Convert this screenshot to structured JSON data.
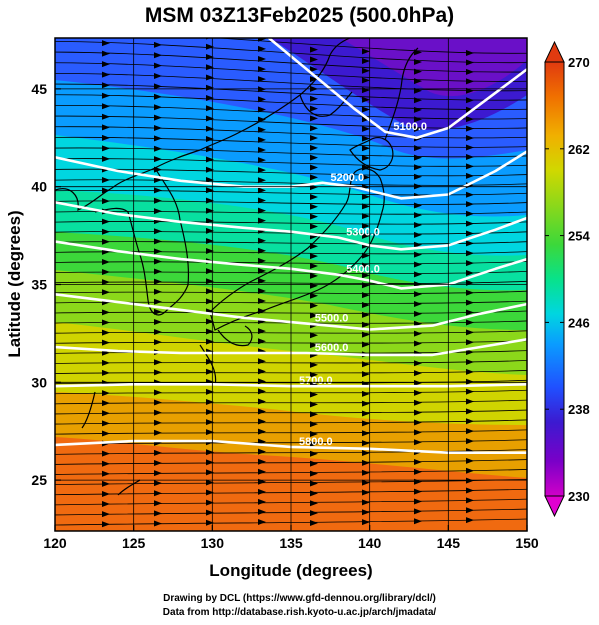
{
  "figure": {
    "title": "MSM 03Z13Feb2025 (500.0hPa)",
    "xlabel": "Longitude (degrees)",
    "ylabel": "Latitude  (degrees)",
    "credit_line1": "Drawing by DCL (https://www.gfd-dennou.org/library/dcl/)",
    "credit_line2": "Data from http://database.rish.kyoto-u.ac.jp/arch/jmadata/"
  },
  "chart_data": {
    "type": "heatmap",
    "variable": "temperature (color), geopotential height contours, streamlines",
    "xlim": [
      120,
      150
    ],
    "ylim": [
      22.4,
      47.6
    ],
    "xticks": [
      120,
      125,
      130,
      135,
      140,
      145,
      150
    ],
    "yticks": [
      25,
      30,
      35,
      40,
      45
    ],
    "colorbar": {
      "min": 230,
      "max": 270,
      "tick_labels": [
        230,
        238,
        246,
        254,
        262,
        270
      ],
      "colors": [
        "#d000c8",
        "#7a00c8",
        "#3c1ad0",
        "#2050ff",
        "#0a9cff",
        "#00d6e0",
        "#08e28a",
        "#3cd83a",
        "#8cd81a",
        "#d0d800",
        "#f0b000",
        "#f07000",
        "#e03a10"
      ]
    },
    "contours": [
      {
        "label": "5100.0",
        "lon": [
          130,
          133,
          136,
          139,
          141,
          143,
          145,
          148,
          150
        ],
        "lat": [
          49,
          48,
          46,
          44,
          42.8,
          42.5,
          43,
          44.8,
          46
        ]
      },
      {
        "label": "5200.0",
        "lon": [
          120,
          124,
          128,
          132,
          135,
          137,
          139,
          142,
          145,
          148,
          150
        ],
        "lat": [
          41.5,
          40.8,
          40.3,
          40.0,
          40.0,
          40.2,
          40.0,
          39.4,
          39.6,
          40.8,
          41.8
        ]
      },
      {
        "label": "5300.0",
        "lon": [
          120,
          124,
          128,
          132,
          135,
          138,
          140,
          142,
          145,
          148,
          150
        ],
        "lat": [
          39.2,
          38.6,
          38.2,
          37.9,
          37.7,
          37.4,
          37.0,
          36.8,
          37.0,
          37.8,
          38.4
        ]
      },
      {
        "label": "5400.0",
        "lon": [
          120,
          124,
          128,
          132,
          135,
          138,
          140,
          142,
          145,
          148,
          150
        ],
        "lat": [
          37.2,
          36.7,
          36.3,
          36.0,
          35.8,
          35.5,
          35.2,
          34.8,
          35.0,
          35.8,
          36.3
        ]
      },
      {
        "label": "5500.0",
        "lon": [
          120,
          124,
          128,
          132,
          136,
          140,
          144,
          147,
          150
        ],
        "lat": [
          34.5,
          34.1,
          33.7,
          33.3,
          33.0,
          32.7,
          32.9,
          33.5,
          34.0
        ]
      },
      {
        "label": "5600.0",
        "lon": [
          120,
          124,
          128,
          132,
          136,
          140,
          144,
          147,
          150
        ],
        "lat": [
          31.8,
          31.6,
          31.5,
          31.5,
          31.5,
          31.4,
          31.4,
          31.8,
          32.2
        ]
      },
      {
        "label": "5700.0",
        "lon": [
          120,
          125,
          130,
          135,
          140,
          145,
          150
        ],
        "lat": [
          29.8,
          29.9,
          29.9,
          29.8,
          29.8,
          29.8,
          29.9
        ]
      },
      {
        "label": "5800.0",
        "lon": [
          120,
          125,
          130,
          135,
          140,
          145,
          150
        ],
        "lat": [
          26.8,
          27.0,
          27.0,
          26.7,
          26.6,
          26.4,
          26.4
        ]
      }
    ]
  }
}
